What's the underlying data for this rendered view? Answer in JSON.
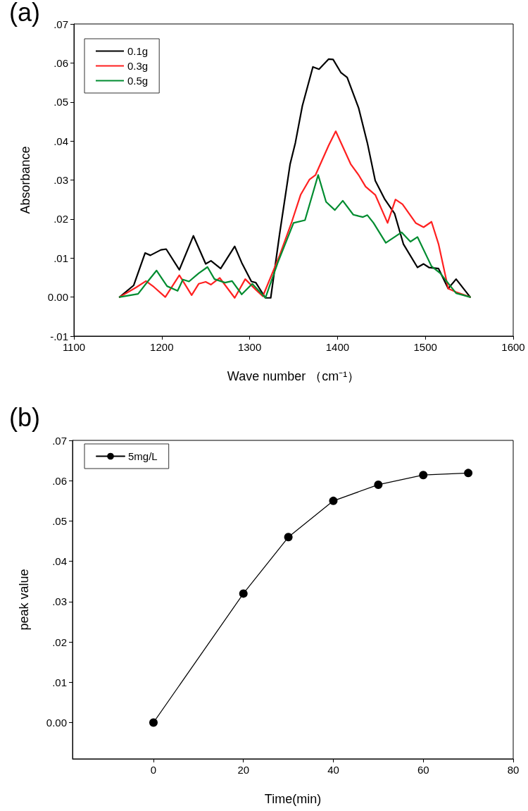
{
  "chart_data": [
    {
      "type": "line",
      "title": "(a)",
      "xlabel": "Wave number （cm⁻¹）",
      "ylabel": "Absorbance",
      "x": [
        1152,
        1168,
        1181,
        1187,
        1199,
        1205,
        1220,
        1236,
        1250,
        1256,
        1267,
        1283,
        1291,
        1302,
        1307,
        1318,
        1324,
        1334,
        1346,
        1352,
        1360,
        1372,
        1379,
        1390,
        1395,
        1404,
        1411,
        1424,
        1434,
        1443,
        1454,
        1465,
        1475,
        1491,
        1498,
        1504,
        1515,
        1526,
        1535,
        1551
      ],
      "series": [
        {
          "name": "0.1g",
          "color": "#000000",
          "values": [
            0,
            0.003,
            0.0113,
            0.0107,
            0.0121,
            0.0123,
            0.007,
            0.0157,
            0.0085,
            0.0093,
            0.0073,
            0.013,
            0.0088,
            0.004,
            0.0037,
            -0.0002,
            -0.0002,
            0.016,
            0.034,
            0.0395,
            0.049,
            0.059,
            0.0584,
            0.061,
            0.0609,
            0.0575,
            0.0563,
            0.0485,
            0.0395,
            0.0298,
            0.025,
            0.0214,
            0.0136,
            0.0076,
            0.0085,
            0.0076,
            0.0073,
            0.0022,
            0.0046,
            0
          ]
        },
        {
          "name": "0.3g",
          "color": "#ff2020",
          "x": [
            1152,
            1171,
            1182,
            1191,
            1204,
            1220,
            1234,
            1242,
            1250,
            1256,
            1266,
            1283,
            1295,
            1307,
            1315,
            1334,
            1348,
            1358,
            1368,
            1375,
            1390,
            1398,
            1415,
            1424,
            1432,
            1443,
            1457,
            1466,
            1474,
            1489,
            1498,
            1507,
            1515,
            1526,
            1535,
            1551
          ],
          "values": [
            0,
            0.0025,
            0.0041,
            0.0026,
            0,
            0.0056,
            0.0005,
            0.0034,
            0.0039,
            0.0032,
            0.0049,
            -0.0002,
            0.0046,
            0.0019,
            0.0002,
            0.0106,
            0.0193,
            0.0262,
            0.0301,
            0.0313,
            0.0389,
            0.0425,
            0.0341,
            0.0313,
            0.0283,
            0.0262,
            0.019,
            0.025,
            0.0238,
            0.019,
            0.0179,
            0.0193,
            0.0136,
            0.0022,
            0.0013,
            0
          ]
        },
        {
          "name": "0.5g",
          "color": "#008c30",
          "x": [
            1152,
            1173,
            1184,
            1194,
            1206,
            1218,
            1224,
            1231,
            1242,
            1252,
            1260,
            1272,
            1280,
            1291,
            1303,
            1318,
            1332,
            1350,
            1363,
            1378,
            1387,
            1397,
            1406,
            1418,
            1429,
            1434,
            1441,
            1455,
            1467,
            1473,
            1483,
            1491,
            1507,
            1517,
            1535,
            1551
          ],
          "values": [
            0,
            0.0008,
            0.004,
            0.0068,
            0.0028,
            0.0016,
            0.0045,
            0.004,
            0.0061,
            0.0077,
            0.0046,
            0.0037,
            0.0041,
            0.0007,
            0.0034,
            -0.0002,
            0.0088,
            0.019,
            0.0197,
            0.0313,
            0.0244,
            0.0223,
            0.0247,
            0.0211,
            0.0205,
            0.021,
            0.019,
            0.0139,
            0.0157,
            0.0166,
            0.0142,
            0.0154,
            0.0079,
            0.0061,
            0.001,
            0
          ]
        }
      ],
      "xlim": [
        1100,
        1600
      ],
      "xticks": [
        1100,
        1200,
        1300,
        1400,
        1500,
        1600
      ],
      "ylim": [
        -0.01,
        0.07
      ],
      "yticks": [
        {
          "value": -0.01,
          "label": "-.01"
        },
        {
          "value": 0,
          "label": "0.00"
        },
        {
          "value": 0.01,
          "label": ".01"
        },
        {
          "value": 0.02,
          "label": ".02"
        },
        {
          "value": 0.03,
          "label": ".03"
        },
        {
          "value": 0.04,
          "label": ".04"
        },
        {
          "value": 0.05,
          "label": ".05"
        },
        {
          "value": 0.06,
          "label": ".06"
        },
        {
          "value": 0.07,
          "label": ".07"
        }
      ],
      "legend": "top left",
      "marker": "none",
      "line_style": "solid"
    },
    {
      "type": "line",
      "title": "(b)",
      "xlabel": "Time(min)",
      "ylabel": "peak value",
      "x": [
        0,
        20,
        30,
        40,
        50,
        60,
        70
      ],
      "series": [
        {
          "name": "5mg/L",
          "color": "#000000",
          "values": [
            0,
            0.032,
            0.046,
            0.055,
            0.059,
            0.0614,
            0.0619
          ]
        }
      ],
      "xlim": [
        -18,
        80
      ],
      "xticks": [
        0,
        20,
        40,
        60,
        80
      ],
      "ylim": [
        -0.009,
        0.07
      ],
      "yticks": [
        {
          "value": 0,
          "label": "0.00"
        },
        {
          "value": 0.01,
          "label": ".01"
        },
        {
          "value": 0.02,
          "label": ".02"
        },
        {
          "value": 0.03,
          "label": ".03"
        },
        {
          "value": 0.04,
          "label": ".04"
        },
        {
          "value": 0.05,
          "label": ".05"
        },
        {
          "value": 0.06,
          "label": ".06"
        },
        {
          "value": 0.07,
          "label": ".07"
        }
      ],
      "legend": "top left",
      "marker": "circle",
      "line_style": "solid"
    }
  ]
}
